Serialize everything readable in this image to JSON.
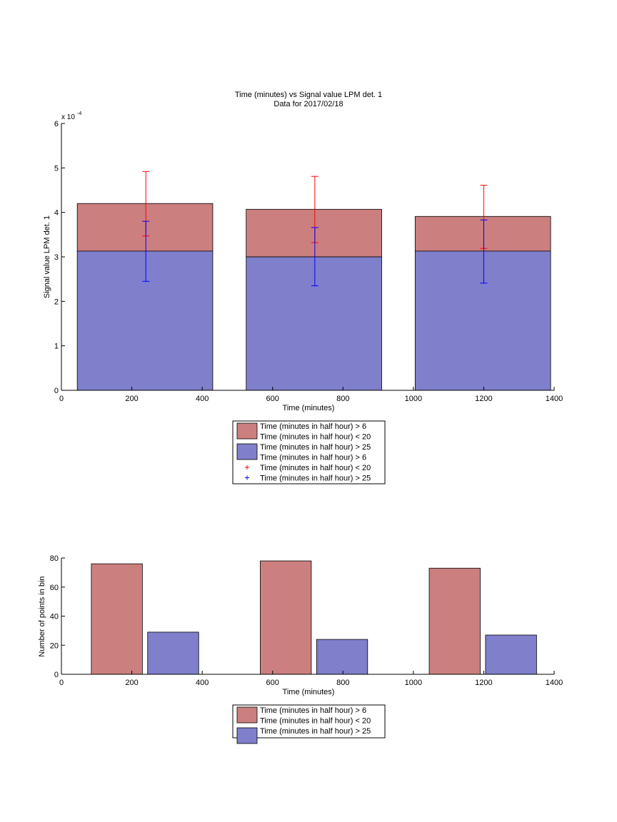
{
  "chart_data": [
    {
      "type": "bar",
      "title": "Time (minutes) vs Signal value LPM det. 1",
      "subtitle": "Data for 2017/02/18",
      "xlabel": "Time (minutes)",
      "ylabel": "Signal value LPM det. 1",
      "y_exponent_label": "x 10",
      "y_exponent": "-4",
      "xlim": [
        0,
        1400
      ],
      "ylim": [
        0,
        6
      ],
      "y_scale": "1e-4",
      "x_ticks": [
        0,
        200,
        400,
        600,
        800,
        1000,
        1200,
        1400
      ],
      "y_ticks": [
        0,
        1,
        2,
        3,
        4,
        5,
        6
      ],
      "grid": false,
      "legend_position": "below",
      "bars": [
        {
          "x_start": 45,
          "x_end": 430,
          "mean": 4.2,
          "min": 3.13
        },
        {
          "x_start": 525,
          "x_end": 910,
          "mean": 4.07,
          "min": 3.0
        },
        {
          "x_start": 1005,
          "x_end": 1390,
          "mean": 3.91,
          "min": 3.13
        }
      ],
      "errorbars": [
        {
          "x": 240,
          "series": 0,
          "center": 4.2,
          "low": 3.47,
          "high": 4.92
        },
        {
          "x": 240,
          "series": 1,
          "center": 3.13,
          "low": 2.45,
          "high": 3.8
        },
        {
          "x": 720,
          "series": 0,
          "center": 4.07,
          "low": 3.32,
          "high": 4.81
        },
        {
          "x": 720,
          "series": 1,
          "center": 3.0,
          "low": 2.35,
          "high": 3.66
        },
        {
          "x": 1200,
          "series": 0,
          "center": 3.91,
          "low": 3.19,
          "high": 4.61
        },
        {
          "x": 1200,
          "series": 1,
          "center": 3.13,
          "low": 2.41,
          "high": 3.83
        }
      ],
      "series": [
        {
          "name": "Time (minutes in half hour) > 6",
          "color": "#cc7f7f"
        },
        {
          "name": "Time (minutes in half hour) < 20",
          "color": "#cc7f7f"
        },
        {
          "name": "Time (minutes in half hour) > 25",
          "color": "#7f7fcc"
        }
      ],
      "legend": [
        {
          "label": "Time (minutes in half hour) > 6",
          "marker": "patch",
          "color": "#cc7f7f"
        },
        {
          "label": "Time (minutes in half hour) < 20",
          "marker": "none",
          "color": "#cc7f7f"
        },
        {
          "label": "Time (minutes in half hour) > 25",
          "marker": "patch",
          "color": "#7f7fcc"
        },
        {
          "label": "Time (minutes in half hour) > 6",
          "marker": "none",
          "color": "#ff0000"
        },
        {
          "label": "Time (minutes in half hour) < 20",
          "marker": "plus",
          "color": "#ff0000"
        },
        {
          "label": "Time (minutes in half hour) > 25",
          "marker": "plus",
          "color": "#0000ff"
        }
      ]
    },
    {
      "type": "bar",
      "xlabel": "Time (minutes)",
      "ylabel": "Number of points in bin",
      "xlim": [
        0,
        1400
      ],
      "ylim": [
        0,
        80
      ],
      "x_ticks": [
        0,
        200,
        400,
        600,
        800,
        1000,
        1200,
        1400
      ],
      "y_ticks": [
        0,
        20,
        40,
        60,
        80
      ],
      "grid": false,
      "legend_position": "below",
      "bars": [
        {
          "x_start": 85,
          "x_end": 230,
          "value": 76,
          "series": 0
        },
        {
          "x_start": 245,
          "x_end": 390,
          "value": 29,
          "series": 1
        },
        {
          "x_start": 565,
          "x_end": 710,
          "value": 78,
          "series": 0
        },
        {
          "x_start": 725,
          "x_end": 870,
          "value": 24,
          "series": 1
        },
        {
          "x_start": 1045,
          "x_end": 1190,
          "value": 73,
          "series": 0
        },
        {
          "x_start": 1205,
          "x_end": 1350,
          "value": 27,
          "series": 1
        }
      ],
      "series": [
        {
          "name": "Time (minutes in half hour) > 6",
          "color": "#cc7f7f"
        },
        {
          "name": "Time (minutes in half hour) > 25",
          "color": "#7f7fcc"
        }
      ],
      "legend": [
        {
          "label": "Time (minutes in half hour) > 6",
          "marker": "patch",
          "color": "#cc7f7f"
        },
        {
          "label": "Time (minutes in half hour) < 20",
          "marker": "none",
          "color": "#cc7f7f"
        },
        {
          "label": "Time (minutes in half hour) > 25",
          "marker": "patch",
          "color": "#7f7fcc"
        }
      ]
    }
  ]
}
